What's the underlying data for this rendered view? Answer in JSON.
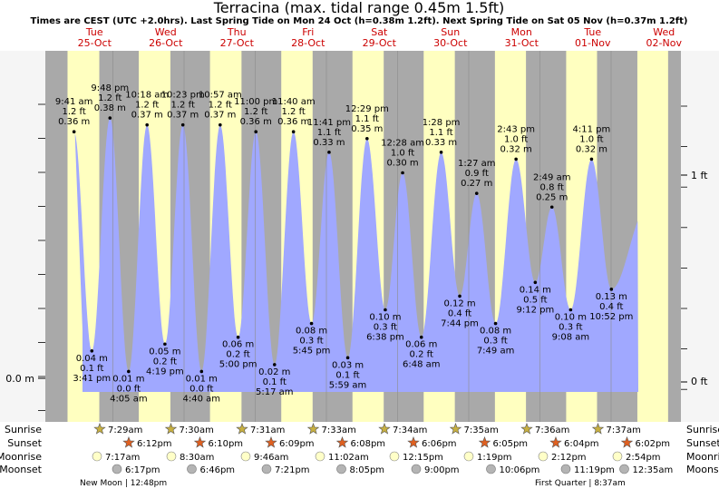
{
  "chart_data": {
    "type": "area",
    "title": "Terracina (max. tidal range 0.45m 1.5ft)",
    "subtitle": "Times are CEST (UTC +2.0hrs). Last Spring Tide on Mon 24 Oct (h=0.38m 1.2ft). Next Spring Tide on Sat 05 Nov (h=0.37m 1.2ft)",
    "ylabel_left": "0.0 m",
    "ylabel_right": [
      "0 ft",
      "1 ft"
    ],
    "ylim_m": [
      -0.04,
      0.46
    ],
    "days": [
      {
        "dow": "Tue",
        "date": "25-Oct"
      },
      {
        "dow": "Wed",
        "date": "26-Oct"
      },
      {
        "dow": "Thu",
        "date": "27-Oct"
      },
      {
        "dow": "Fri",
        "date": "28-Oct"
      },
      {
        "dow": "Sat",
        "date": "29-Oct"
      },
      {
        "dow": "Sun",
        "date": "30-Oct"
      },
      {
        "dow": "Mon",
        "date": "31-Oct"
      },
      {
        "dow": "Tue",
        "date": "01-Nov"
      },
      {
        "dow": "Wed",
        "date": "02-Nov"
      }
    ],
    "tides": [
      {
        "day": 0,
        "hour": 9.68,
        "h": 0.36,
        "type": "high",
        "time": "9:41 am",
        "ft": "1.2 ft",
        "m": "0.36 m"
      },
      {
        "day": 0,
        "hour": 15.68,
        "h": 0.04,
        "type": "low",
        "time": "3:41 pm",
        "ft": "0.1 ft",
        "m": "0.04 m"
      },
      {
        "day": 0,
        "hour": 21.8,
        "h": 0.38,
        "type": "high",
        "time": "9:48 pm",
        "ft": "1.2 ft",
        "m": "0.38 m"
      },
      {
        "day": 1,
        "hour": 4.08,
        "h": 0.01,
        "type": "low",
        "time": "4:05 am",
        "ft": "0.0 ft",
        "m": "0.01 m"
      },
      {
        "day": 1,
        "hour": 10.3,
        "h": 0.37,
        "type": "high",
        "time": "10:18 am",
        "ft": "1.2 ft",
        "m": "0.37 m"
      },
      {
        "day": 1,
        "hour": 16.32,
        "h": 0.05,
        "type": "low",
        "time": "4:19 pm",
        "ft": "0.2 ft",
        "m": "0.05 m"
      },
      {
        "day": 1,
        "hour": 22.38,
        "h": 0.37,
        "type": "high",
        "time": "10:23 pm",
        "ft": "1.2 ft",
        "m": "0.37 m"
      },
      {
        "day": 2,
        "hour": 4.67,
        "h": 0.01,
        "type": "low",
        "time": "4:40 am",
        "ft": "0.0 ft",
        "m": "0.01 m"
      },
      {
        "day": 2,
        "hour": 10.95,
        "h": 0.37,
        "type": "high",
        "time": "10:57 am",
        "ft": "1.2 ft",
        "m": "0.37 m"
      },
      {
        "day": 2,
        "hour": 17.0,
        "h": 0.06,
        "type": "low",
        "time": "5:00 pm",
        "ft": "0.2 ft",
        "m": "0.06 m"
      },
      {
        "day": 2,
        "hour": 23.0,
        "h": 0.36,
        "type": "high",
        "time": "11:00 pm",
        "ft": "1.2 ft",
        "m": "0.36 m"
      },
      {
        "day": 3,
        "hour": 5.28,
        "h": 0.02,
        "type": "low",
        "time": "5:17 am",
        "ft": "0.1 ft",
        "m": "0.02 m"
      },
      {
        "day": 3,
        "hour": 11.67,
        "h": 0.36,
        "type": "high",
        "time": "11:40 am",
        "ft": "1.2 ft",
        "m": "0.36 m"
      },
      {
        "day": 3,
        "hour": 17.75,
        "h": 0.08,
        "type": "low",
        "time": "5:45 pm",
        "ft": "0.3 ft",
        "m": "0.08 m"
      },
      {
        "day": 3,
        "hour": 23.68,
        "h": 0.33,
        "type": "high",
        "time": "11:41 pm",
        "ft": "1.1 ft",
        "m": "0.33 m"
      },
      {
        "day": 4,
        "hour": 5.98,
        "h": 0.03,
        "type": "low",
        "time": "5:59 am",
        "ft": "0.1 ft",
        "m": "0.03 m"
      },
      {
        "day": 4,
        "hour": 12.48,
        "h": 0.35,
        "type": "high",
        "time": "12:29 pm",
        "ft": "1.1 ft",
        "m": "0.35 m"
      },
      {
        "day": 4,
        "hour": 18.63,
        "h": 0.1,
        "type": "low",
        "time": "6:38 pm",
        "ft": "0.3 ft",
        "m": "0.10 m"
      },
      {
        "day": 5,
        "hour": 0.47,
        "h": 0.3,
        "type": "high",
        "time": "12:28 am",
        "ft": "1.0 ft",
        "m": "0.30 m"
      },
      {
        "day": 5,
        "hour": 6.8,
        "h": 0.06,
        "type": "low",
        "time": "6:48 am",
        "ft": "0.2 ft",
        "m": "0.06 m"
      },
      {
        "day": 5,
        "hour": 13.47,
        "h": 0.33,
        "type": "high",
        "time": "1:28 pm",
        "ft": "1.1 ft",
        "m": "0.33 m"
      },
      {
        "day": 5,
        "hour": 19.73,
        "h": 0.12,
        "type": "low",
        "time": "7:44 pm",
        "ft": "0.4 ft",
        "m": "0.12 m"
      },
      {
        "day": 6,
        "hour": 1.45,
        "h": 0.27,
        "type": "high",
        "time": "1:27 am",
        "ft": "0.9 ft",
        "m": "0.27 m"
      },
      {
        "day": 6,
        "hour": 7.82,
        "h": 0.08,
        "type": "low",
        "time": "7:49 am",
        "ft": "0.3 ft",
        "m": "0.08 m"
      },
      {
        "day": 6,
        "hour": 14.72,
        "h": 0.32,
        "type": "high",
        "time": "2:43 pm",
        "ft": "1.0 ft",
        "m": "0.32 m"
      },
      {
        "day": 6,
        "hour": 21.2,
        "h": 0.14,
        "type": "low",
        "time": "9:12 pm",
        "ft": "0.5 ft",
        "m": "0.14 m"
      },
      {
        "day": 7,
        "hour": 2.82,
        "h": 0.25,
        "type": "high",
        "time": "2:49 am",
        "ft": "0.8 ft",
        "m": "0.25 m"
      },
      {
        "day": 7,
        "hour": 9.13,
        "h": 0.1,
        "type": "low",
        "time": "9:08 am",
        "ft": "0.3 ft",
        "m": "0.10 m"
      },
      {
        "day": 7,
        "hour": 16.18,
        "h": 0.32,
        "type": "high",
        "time": "4:11 pm",
        "ft": "1.0 ft",
        "m": "0.32 m"
      },
      {
        "day": 7,
        "hour": 22.87,
        "h": 0.13,
        "type": "low",
        "time": "10:52 pm",
        "ft": "0.4 ft",
        "m": "0.13 m"
      }
    ],
    "daylight": [
      {
        "rise": 7.48,
        "set": 18.2
      },
      {
        "rise": 7.5,
        "set": 18.17
      },
      {
        "rise": 7.52,
        "set": 18.15
      },
      {
        "rise": 7.55,
        "set": 18.13
      },
      {
        "rise": 7.57,
        "set": 18.1
      },
      {
        "rise": 7.58,
        "set": 18.08
      },
      {
        "rise": 7.6,
        "set": 18.07
      },
      {
        "rise": 7.62,
        "set": 18.03
      },
      {
        "rise": 7.63,
        "set": 18.0
      }
    ],
    "sun_moon": [
      {
        "sunrise": "7:29am",
        "sunset": "6:12pm",
        "moonrise": "7:17am",
        "moonset": "6:17pm"
      },
      {
        "sunrise": "7:30am",
        "sunset": "6:10pm",
        "moonrise": "8:30am",
        "moonset": "6:46pm"
      },
      {
        "sunrise": "7:31am",
        "sunset": "6:09pm",
        "moonrise": "9:46am",
        "moonset": "7:21pm"
      },
      {
        "sunrise": "7:33am",
        "sunset": "6:08pm",
        "moonrise": "11:02am",
        "moonset": "8:05pm"
      },
      {
        "sunrise": "7:34am",
        "sunset": "6:06pm",
        "moonrise": "12:15pm",
        "moonset": "9:00pm"
      },
      {
        "sunrise": "7:35am",
        "sunset": "6:05pm",
        "moonrise": "1:19pm",
        "moonset": "10:06pm"
      },
      {
        "sunrise": "7:36am",
        "sunset": "6:04pm",
        "moonrise": "2:12pm",
        "moonset": "11:19pm"
      },
      {
        "sunrise": "7:37am",
        "sunset": "6:02pm",
        "moonrise": "2:54pm",
        "moonset": "12:35am"
      }
    ],
    "row_labels": [
      "Sunrise",
      "Sunset",
      "Moonrise",
      "Moonset"
    ],
    "moon_phases": [
      {
        "label": "New Moon | 12:48pm",
        "day": 0
      },
      {
        "label": "First Quarter | 8:37am",
        "day": 6
      }
    ]
  },
  "colors": {
    "night": "#a9a9a9",
    "day": "#ffffc0",
    "tide": "#a0a8ff",
    "axis_bg": "#f5f5f5",
    "day_label": "#cc0000",
    "star_rise": "#c8b040",
    "star_set": "#e06020",
    "moon_rise": "#ffffc8",
    "moon_set": "#b4b4b4"
  }
}
